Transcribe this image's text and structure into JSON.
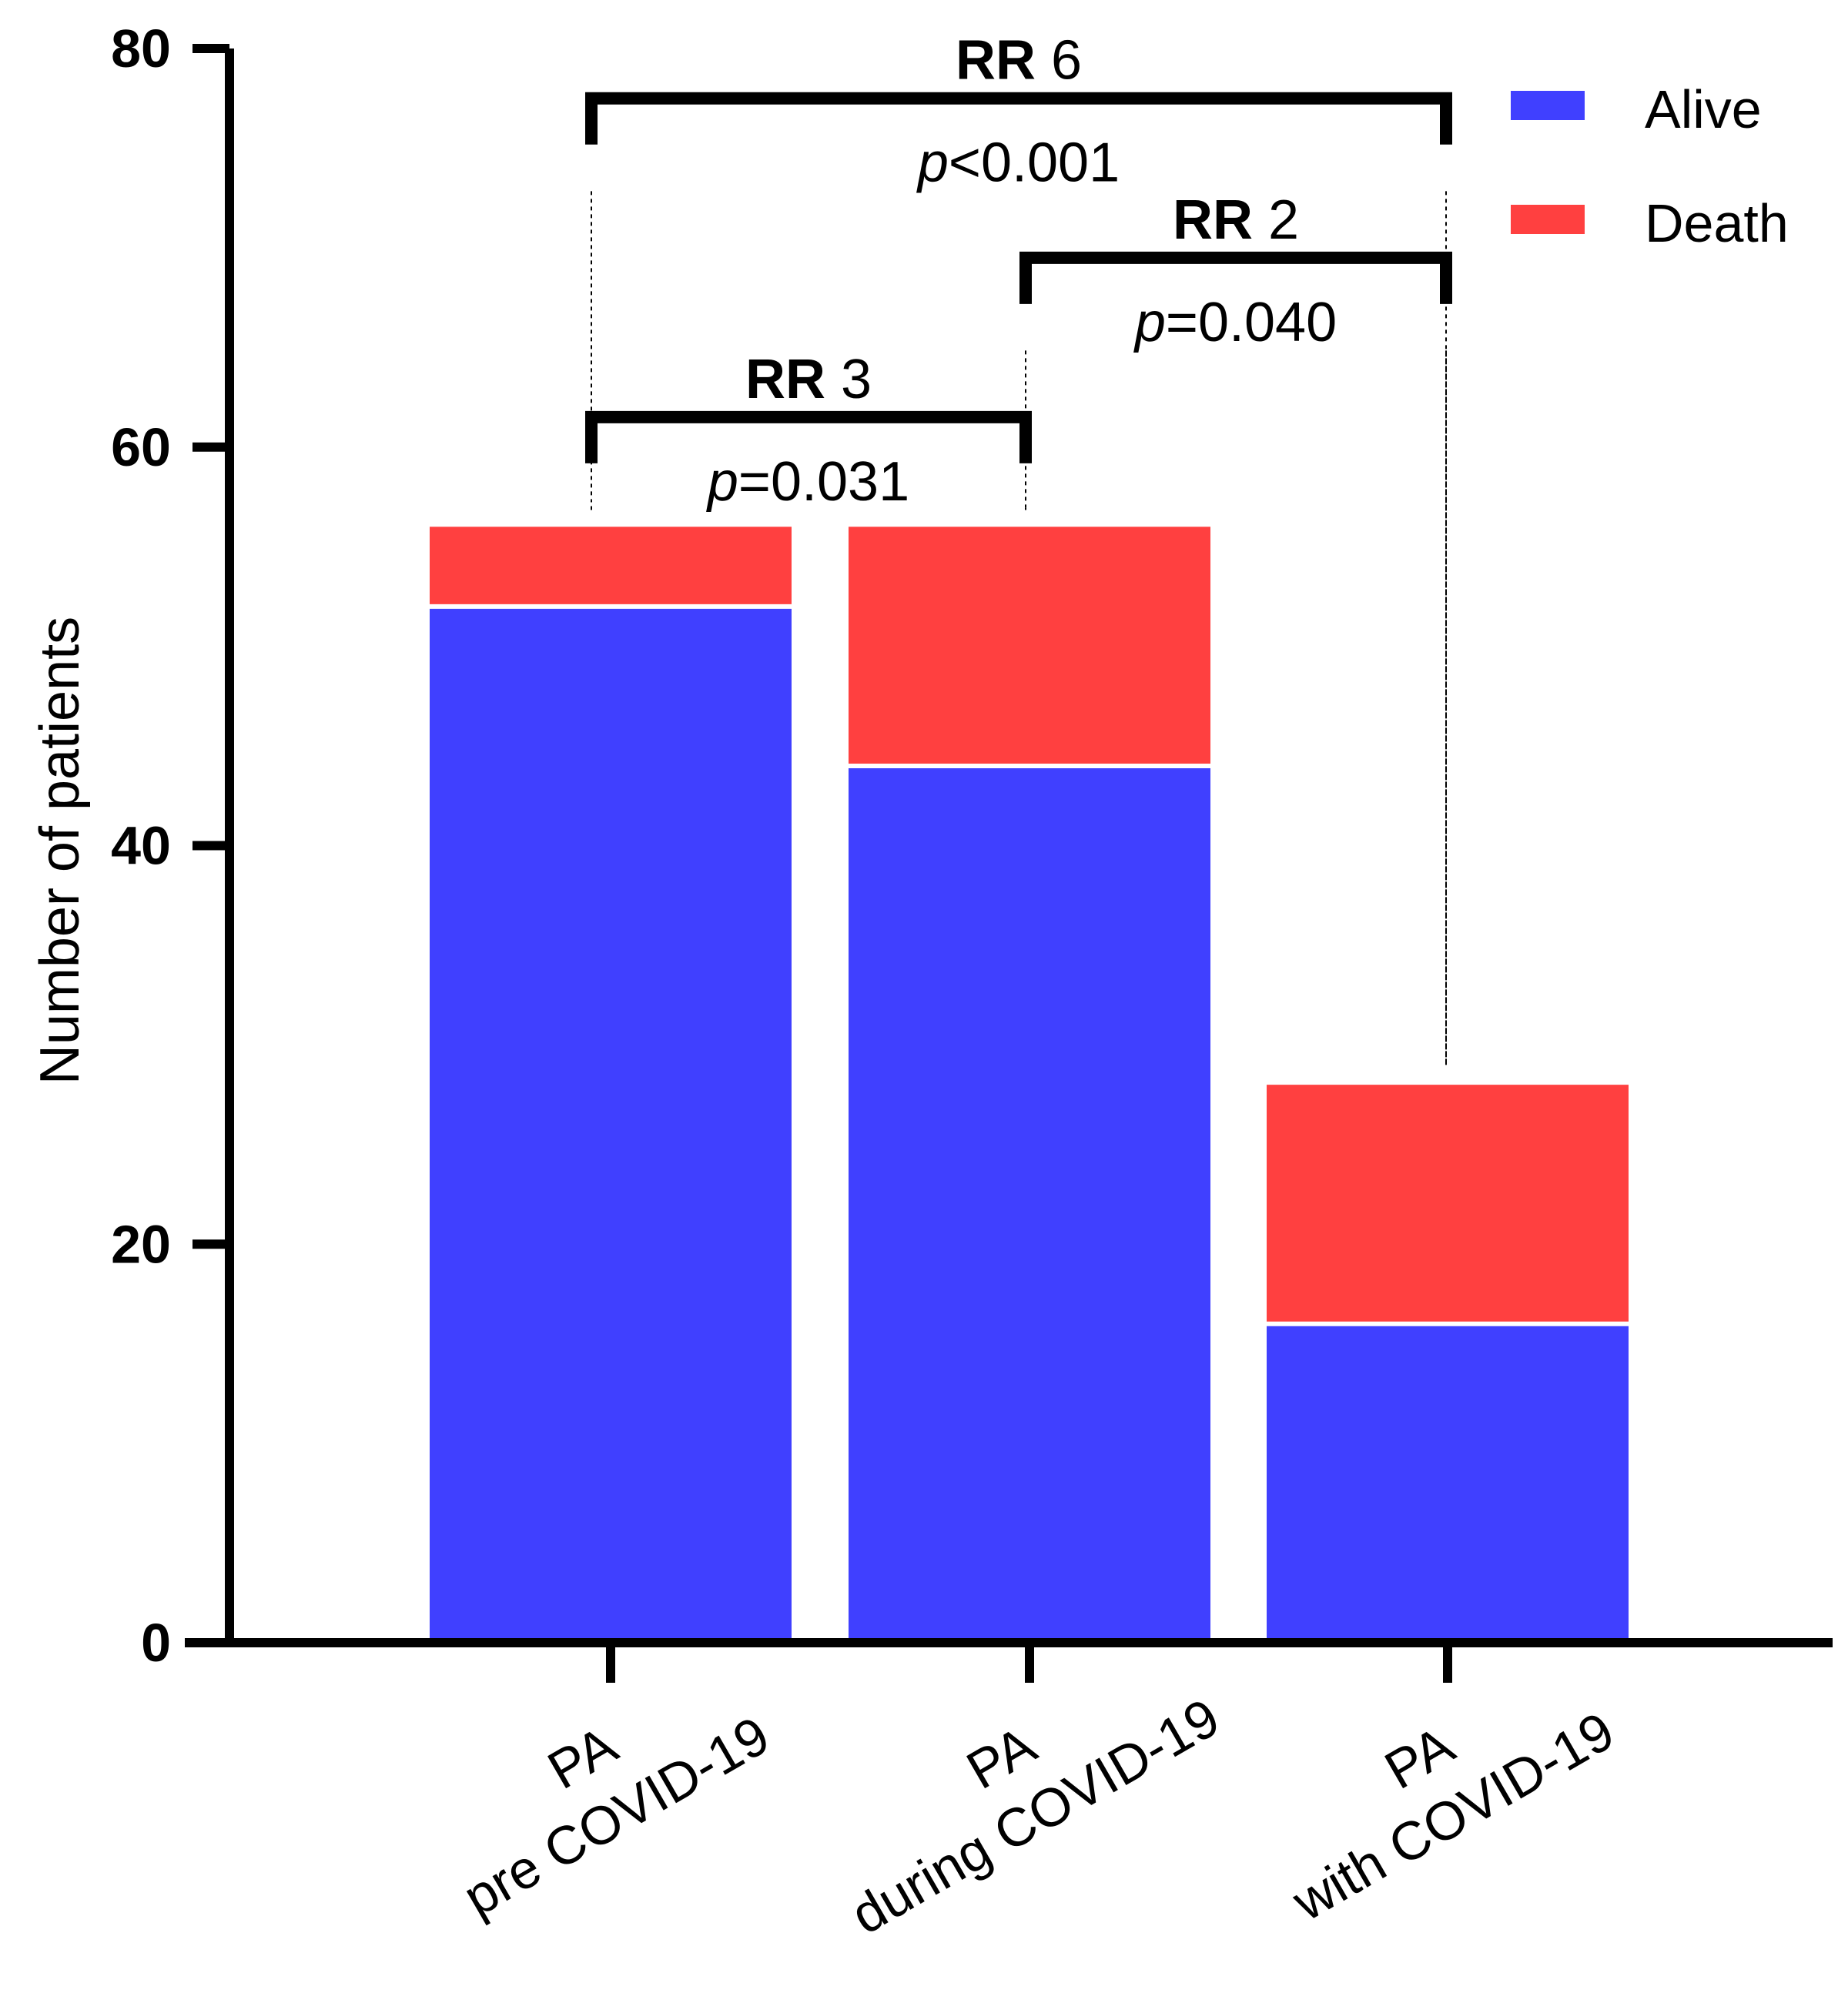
{
  "chart_data": {
    "type": "bar",
    "stacked": true,
    "categories": [
      [
        "PA",
        "pre COVID-19"
      ],
      [
        "PA",
        "during COVID-19"
      ],
      [
        "PA",
        "with COVID-19"
      ]
    ],
    "series": [
      {
        "name": "Alive",
        "color": "#4040ff",
        "values": [
          52,
          44,
          16
        ]
      },
      {
        "name": "Death",
        "color": "#ff4040",
        "values": [
          4,
          12,
          12
        ]
      }
    ],
    "ylabel": "Number of patients",
    "xlabel": "",
    "ylim": [
      0,
      80
    ],
    "yticks": [
      "0",
      "20",
      "40",
      "60",
      "80"
    ],
    "legend_position": "top-right",
    "grid": false,
    "annotations": [
      {
        "from": 0,
        "to": 2,
        "rr_label": "RR",
        "rr_value": "6",
        "p_symbol": "p",
        "p_rest": "<0.001",
        "bracket_y": 77.5,
        "guide_top": [
          74,
          74
        ]
      },
      {
        "from": 1,
        "to": 2,
        "rr_label": "RR",
        "rr_value": "2",
        "p_symbol": "p",
        "p_rest": "=0.040",
        "bracket_y": 69.5,
        "guide_top": [
          66,
          66
        ]
      },
      {
        "from": 0,
        "to": 1,
        "rr_label": "RR",
        "rr_value": "3",
        "p_symbol": "p",
        "p_rest": "=0.031",
        "bracket_y": 61.5,
        "guide_top": [
          58,
          58
        ]
      }
    ]
  }
}
